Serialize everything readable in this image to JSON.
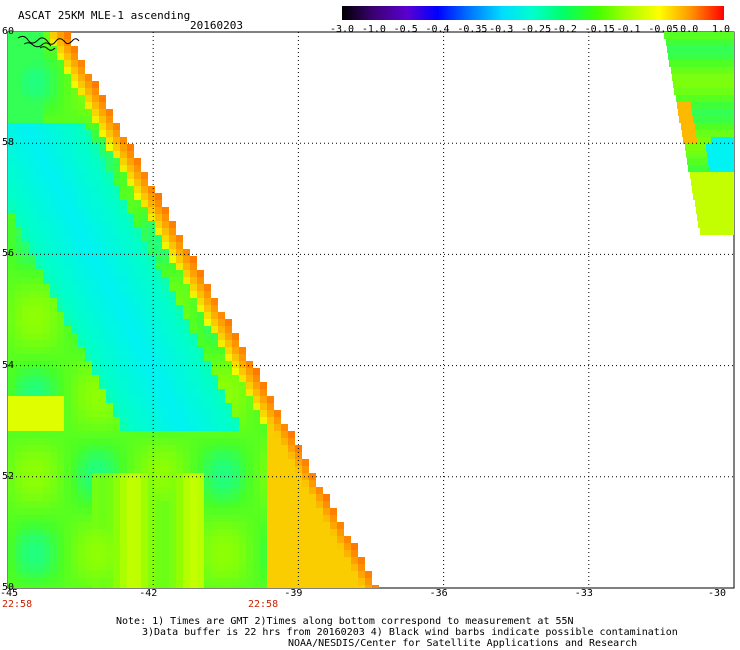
{
  "header": {
    "product": "ASCAT 25KM MLE-1 ascending",
    "date": "20160203"
  },
  "colorbar": {
    "labels": [
      "-3.0",
      "-1.0",
      "-0.5",
      "-0.4",
      "-0.35",
      "-0.3",
      "-0.25",
      "-0.2",
      "-0.15",
      "-0.1",
      "-0.05",
      "0.0",
      "1.0"
    ],
    "colors": [
      "#000000",
      "#4b0082",
      "#6a0dad",
      "#0000ff",
      "#0066ff",
      "#00ccff",
      "#00ffff",
      "#00ff99",
      "#33ff00",
      "#aaff00",
      "#ffff00",
      "#ff9900",
      "#ff0000"
    ]
  },
  "map": {
    "lon_range": [
      -45,
      -30
    ],
    "lat_range": [
      50,
      60
    ],
    "lon_ticks": [
      "-45",
      "-42",
      "-39",
      "-36",
      "-33",
      "-30"
    ],
    "lat_ticks": [
      "60",
      "58",
      "56",
      "54",
      "52",
      "50"
    ],
    "time_labels": [
      "22:58",
      "22:58"
    ]
  },
  "notes": [
    "Note: 1) Times are GMT 2)Times along bottom correspond to measurement at 55N",
    "3)Data buffer is 22 hrs from 20160203 4) Black wind barbs indicate possible contamination",
    "NOAA/NESDIS/Center for Satellite Applications and Research"
  ]
}
